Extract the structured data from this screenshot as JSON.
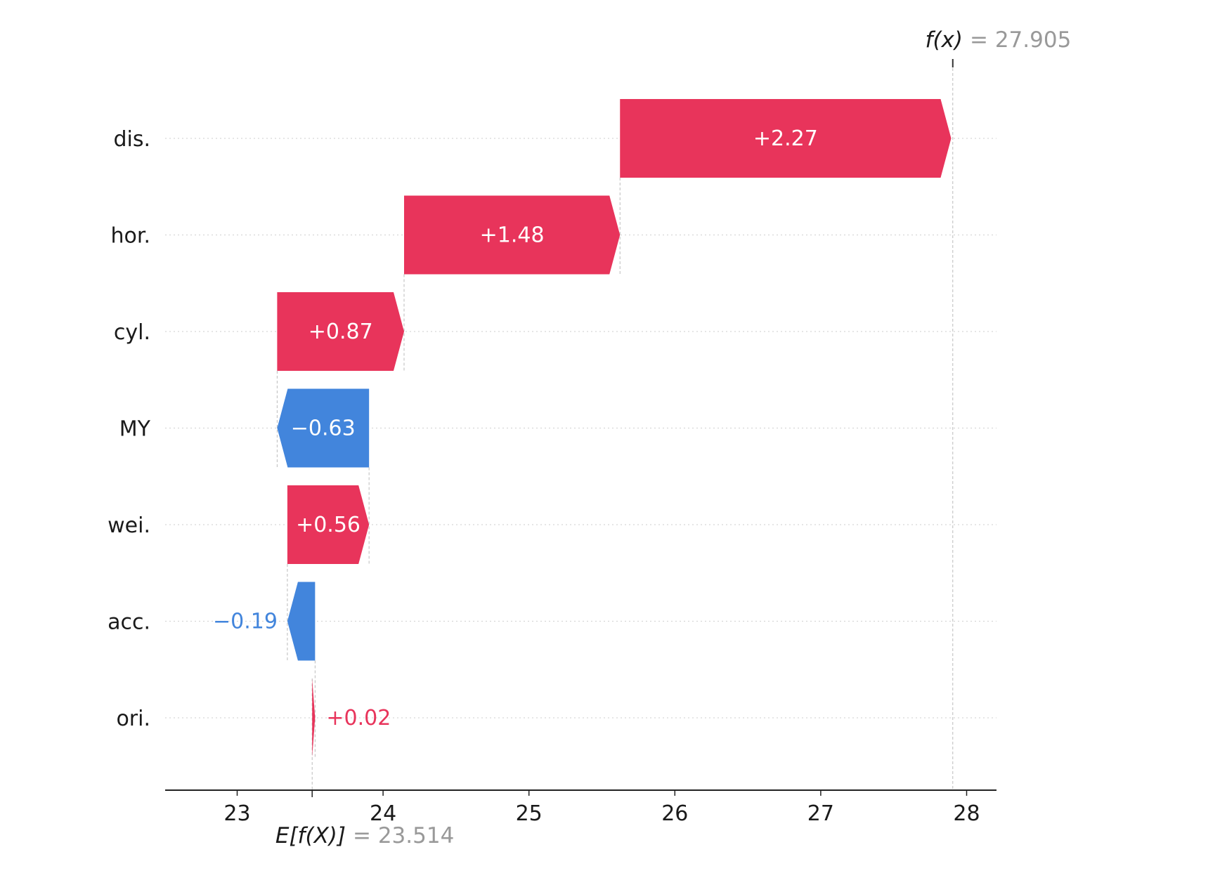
{
  "chart_data": {
    "type": "waterfall",
    "features": [
      "dis.",
      "hor.",
      "cyl.",
      "MY",
      "wei.",
      "acc.",
      "ori."
    ],
    "values": [
      2.27,
      1.48,
      0.87,
      -0.63,
      0.56,
      -0.19,
      0.02
    ],
    "value_labels": [
      "+2.27",
      "+1.48",
      "+0.87",
      "−0.63",
      "+0.56",
      "−0.19",
      "+0.02"
    ],
    "base_value": 23.514,
    "base_label": "E[f(X)]",
    "base_value_label": "= 23.514",
    "output_value": 27.905,
    "output_label": "f(x)",
    "output_value_label": "= 27.905",
    "xticks": [
      23,
      24,
      25,
      26,
      27,
      28
    ],
    "xtick_labels": [
      "23",
      "24",
      "25",
      "26",
      "27",
      "28"
    ],
    "xlim": [
      22.5,
      28.2
    ],
    "colors": {
      "positive": "#e8345b",
      "negative": "#4285dc",
      "gray": "#999999"
    }
  }
}
